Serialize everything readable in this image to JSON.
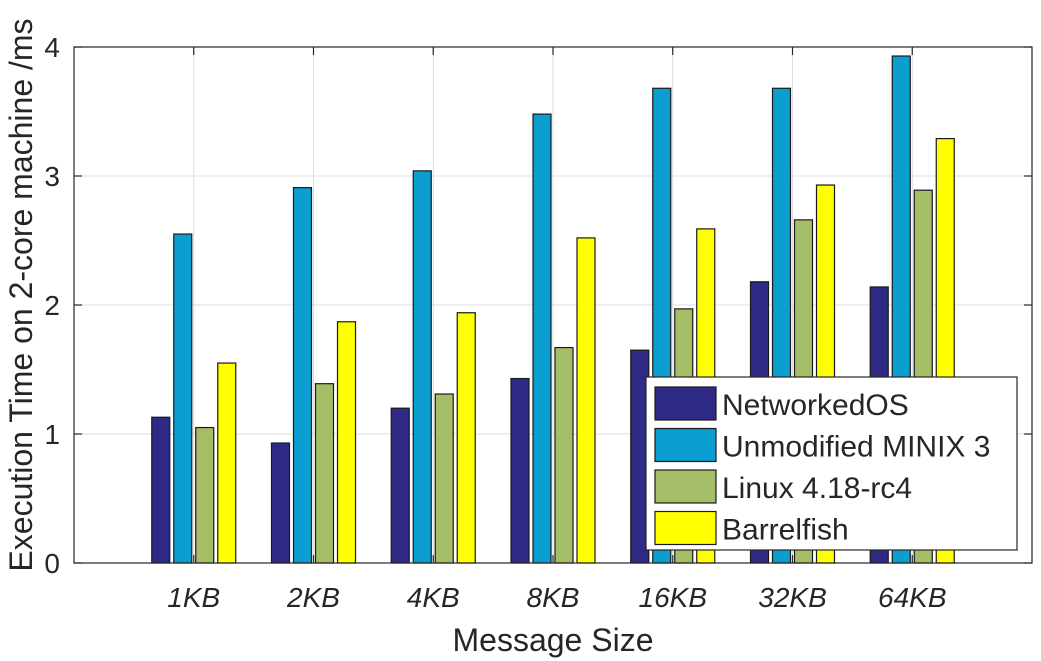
{
  "chart_data": {
    "type": "bar",
    "xlabel": "Message Size",
    "ylabel": "Execution Time on 2-core machine /ms",
    "ylim": [
      0,
      4
    ],
    "yticks": [
      "0",
      "1",
      "2",
      "3",
      "4"
    ],
    "grid": true,
    "legend_position": "bottom-right",
    "categories": [
      "1KB",
      "2KB",
      "4KB",
      "8KB",
      "16KB",
      "32KB",
      "64KB"
    ],
    "series": [
      {
        "name": "NetworkedOS",
        "color": "#2e2a85",
        "values": [
          1.13,
          0.93,
          1.2,
          1.43,
          1.65,
          2.18,
          2.14
        ]
      },
      {
        "name": "Unmodified MINIX 3",
        "color": "#0a9ed1",
        "values": [
          2.55,
          2.91,
          3.04,
          3.48,
          3.68,
          3.68,
          3.93
        ]
      },
      {
        "name": "Linux 4.18-rc4",
        "color": "#a6bd67",
        "values": [
          1.05,
          1.39,
          1.31,
          1.67,
          1.97,
          2.66,
          2.89
        ]
      },
      {
        "name": "Barrelfish",
        "color": "#ffff00",
        "values": [
          1.55,
          1.87,
          1.94,
          2.52,
          2.59,
          2.93,
          3.29
        ]
      }
    ]
  }
}
